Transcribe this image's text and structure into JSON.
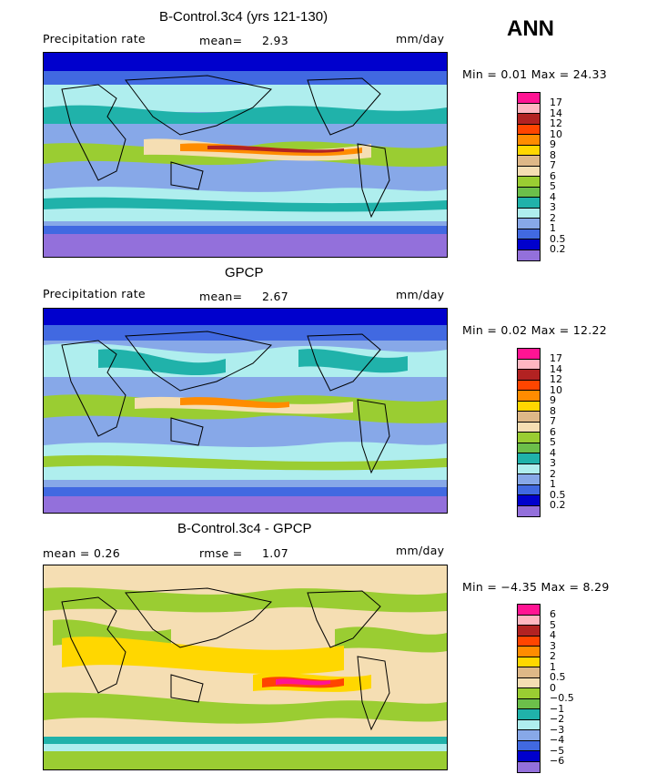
{
  "season": "ANN",
  "panels": [
    {
      "title": "B-Control.3c4 (yrs 121-130)",
      "left_label": "Precipitation rate",
      "center_label": "mean=",
      "center_value": "2.93",
      "units": "mm/day",
      "minmax": "Min =    0.01 Max =   24.33",
      "colorbar": {
        "labels": [
          "17",
          "14",
          "12",
          "10",
          "9",
          "8",
          "7",
          "6",
          "5",
          "4",
          "3",
          "2",
          "1",
          "0.5",
          "0.2"
        ],
        "colors": [
          "#ff1493",
          "#ffb6c1",
          "#b22222",
          "#ff4500",
          "#ff8c00",
          "#ffd700",
          "#deb887",
          "#f5deb3",
          "#9acd32",
          "#6cbf4a",
          "#20b2aa",
          "#afeeee",
          "#87a8e8",
          "#4169e1",
          "#0000cd",
          "#9370db"
        ]
      }
    },
    {
      "title": "GPCP",
      "left_label": "Precipitation rate",
      "center_label": "mean=",
      "center_value": "2.67",
      "units": "mm/day",
      "minmax": "Min =    0.02 Max =   12.22",
      "colorbar": {
        "labels": [
          "17",
          "14",
          "12",
          "10",
          "9",
          "8",
          "7",
          "6",
          "5",
          "4",
          "3",
          "2",
          "1",
          "0.5",
          "0.2"
        ],
        "colors": [
          "#ff1493",
          "#ffb6c1",
          "#b22222",
          "#ff4500",
          "#ff8c00",
          "#ffd700",
          "#deb887",
          "#f5deb3",
          "#9acd32",
          "#6cbf4a",
          "#20b2aa",
          "#afeeee",
          "#87a8e8",
          "#4169e1",
          "#0000cd",
          "#9370db"
        ]
      }
    },
    {
      "title": "B-Control.3c4 - GPCP",
      "left_label": "mean =    0.26",
      "center_label": "rmse =",
      "center_value": "1.07",
      "units": "mm/day",
      "minmax": "Min =   −4.35 Max =    8.29",
      "colorbar": {
        "labels": [
          "6",
          "5",
          "4",
          "3",
          "2",
          "1",
          "0.5",
          "0",
          "−0.5",
          "−1",
          "−2",
          "−3",
          "−4",
          "−5",
          "−6"
        ],
        "colors": [
          "#ff1493",
          "#ffb6c1",
          "#b22222",
          "#ff4500",
          "#ff8c00",
          "#ffd700",
          "#deb887",
          "#f5deb3",
          "#9acd32",
          "#6cbf4a",
          "#20b2aa",
          "#afeeee",
          "#87a8e8",
          "#4169e1",
          "#0000cd",
          "#9370db"
        ]
      }
    }
  ]
}
